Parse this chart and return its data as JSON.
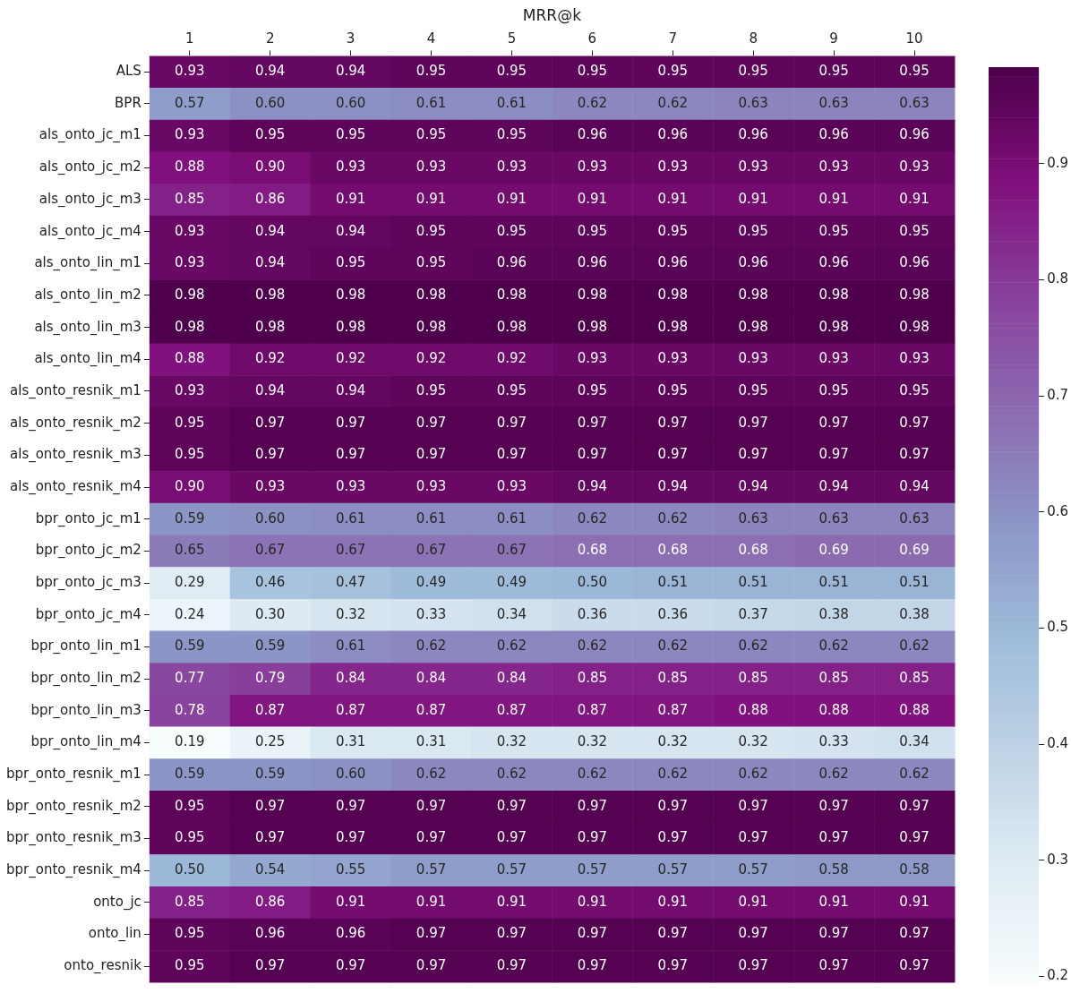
{
  "chart_data": {
    "type": "heatmap",
    "xlabel": "MRR@k",
    "categories": [
      "1",
      "2",
      "3",
      "4",
      "5",
      "6",
      "7",
      "8",
      "9",
      "10"
    ],
    "y_categories": [
      "ALS",
      "BPR",
      "als_onto_jc_m1",
      "als_onto_jc_m2",
      "als_onto_jc_m3",
      "als_onto_jc_m4",
      "als_onto_lin_m1",
      "als_onto_lin_m2",
      "als_onto_lin_m3",
      "als_onto_lin_m4",
      "als_onto_resnik_m1",
      "als_onto_resnik_m2",
      "als_onto_resnik_m3",
      "als_onto_resnik_m4",
      "bpr_onto_jc_m1",
      "bpr_onto_jc_m2",
      "bpr_onto_jc_m3",
      "bpr_onto_jc_m4",
      "bpr_onto_lin_m1",
      "bpr_onto_lin_m2",
      "bpr_onto_lin_m3",
      "bpr_onto_lin_m4",
      "bpr_onto_resnik_m1",
      "bpr_onto_resnik_m2",
      "bpr_onto_resnik_m3",
      "bpr_onto_resnik_m4",
      "onto_jc",
      "onto_lin",
      "onto_resnik"
    ],
    "cells": [
      [
        0.93,
        0.94,
        0.94,
        0.95,
        0.95,
        0.95,
        0.95,
        0.95,
        0.95,
        0.95
      ],
      [
        0.57,
        0.6,
        0.6,
        0.61,
        0.61,
        0.62,
        0.62,
        0.63,
        0.63,
        0.63
      ],
      [
        0.93,
        0.95,
        0.95,
        0.95,
        0.95,
        0.96,
        0.96,
        0.96,
        0.96,
        0.96
      ],
      [
        0.88,
        0.9,
        0.93,
        0.93,
        0.93,
        0.93,
        0.93,
        0.93,
        0.93,
        0.93
      ],
      [
        0.85,
        0.86,
        0.91,
        0.91,
        0.91,
        0.91,
        0.91,
        0.91,
        0.91,
        0.91
      ],
      [
        0.93,
        0.94,
        0.94,
        0.95,
        0.95,
        0.95,
        0.95,
        0.95,
        0.95,
        0.95
      ],
      [
        0.93,
        0.94,
        0.95,
        0.95,
        0.96,
        0.96,
        0.96,
        0.96,
        0.96,
        0.96
      ],
      [
        0.98,
        0.98,
        0.98,
        0.98,
        0.98,
        0.98,
        0.98,
        0.98,
        0.98,
        0.98
      ],
      [
        0.98,
        0.98,
        0.98,
        0.98,
        0.98,
        0.98,
        0.98,
        0.98,
        0.98,
        0.98
      ],
      [
        0.88,
        0.92,
        0.92,
        0.92,
        0.92,
        0.93,
        0.93,
        0.93,
        0.93,
        0.93
      ],
      [
        0.93,
        0.94,
        0.94,
        0.95,
        0.95,
        0.95,
        0.95,
        0.95,
        0.95,
        0.95
      ],
      [
        0.95,
        0.97,
        0.97,
        0.97,
        0.97,
        0.97,
        0.97,
        0.97,
        0.97,
        0.97
      ],
      [
        0.95,
        0.97,
        0.97,
        0.97,
        0.97,
        0.97,
        0.97,
        0.97,
        0.97,
        0.97
      ],
      [
        0.9,
        0.93,
        0.93,
        0.93,
        0.93,
        0.94,
        0.94,
        0.94,
        0.94,
        0.94
      ],
      [
        0.59,
        0.6,
        0.61,
        0.61,
        0.61,
        0.62,
        0.62,
        0.63,
        0.63,
        0.63
      ],
      [
        0.65,
        0.67,
        0.67,
        0.67,
        0.67,
        0.68,
        0.68,
        0.68,
        0.69,
        0.69
      ],
      [
        0.29,
        0.46,
        0.47,
        0.49,
        0.49,
        0.5,
        0.51,
        0.51,
        0.51,
        0.51
      ],
      [
        0.24,
        0.3,
        0.32,
        0.33,
        0.34,
        0.36,
        0.36,
        0.37,
        0.38,
        0.38
      ],
      [
        0.59,
        0.59,
        0.61,
        0.62,
        0.62,
        0.62,
        0.62,
        0.62,
        0.62,
        0.62
      ],
      [
        0.77,
        0.79,
        0.84,
        0.84,
        0.84,
        0.85,
        0.85,
        0.85,
        0.85,
        0.85
      ],
      [
        0.78,
        0.87,
        0.87,
        0.87,
        0.87,
        0.87,
        0.87,
        0.88,
        0.88,
        0.88
      ],
      [
        0.19,
        0.25,
        0.31,
        0.31,
        0.32,
        0.32,
        0.32,
        0.32,
        0.33,
        0.34
      ],
      [
        0.59,
        0.59,
        0.6,
        0.62,
        0.62,
        0.62,
        0.62,
        0.62,
        0.62,
        0.62
      ],
      [
        0.95,
        0.97,
        0.97,
        0.97,
        0.97,
        0.97,
        0.97,
        0.97,
        0.97,
        0.97
      ],
      [
        0.95,
        0.97,
        0.97,
        0.97,
        0.97,
        0.97,
        0.97,
        0.97,
        0.97,
        0.97
      ],
      [
        0.5,
        0.54,
        0.55,
        0.57,
        0.57,
        0.57,
        0.57,
        0.57,
        0.58,
        0.58
      ],
      [
        0.85,
        0.86,
        0.91,
        0.91,
        0.91,
        0.91,
        0.91,
        0.91,
        0.91,
        0.91
      ],
      [
        0.95,
        0.96,
        0.96,
        0.97,
        0.97,
        0.97,
        0.97,
        0.97,
        0.97,
        0.97
      ],
      [
        0.95,
        0.97,
        0.97,
        0.97,
        0.97,
        0.97,
        0.97,
        0.97,
        0.97,
        0.97
      ]
    ],
    "cell_labels": [
      [
        "0.93",
        "0.94",
        "0.94",
        "0.95",
        "0.95",
        "0.95",
        "0.95",
        "0.95",
        "0.95",
        "0.95"
      ],
      [
        "0.57",
        "0.60",
        "0.60",
        "0.61",
        "0.61",
        "0.62",
        "0.62",
        "0.63",
        "0.63",
        "0.63"
      ],
      [
        "0.93",
        "0.95",
        "0.95",
        "0.95",
        "0.95",
        "0.96",
        "0.96",
        "0.96",
        "0.96",
        "0.96"
      ],
      [
        "0.88",
        "0.90",
        "0.93",
        "0.93",
        "0.93",
        "0.93",
        "0.93",
        "0.93",
        "0.93",
        "0.93"
      ],
      [
        "0.85",
        "0.86",
        "0.91",
        "0.91",
        "0.91",
        "0.91",
        "0.91",
        "0.91",
        "0.91",
        "0.91"
      ],
      [
        "0.93",
        "0.94",
        "0.94",
        "0.95",
        "0.95",
        "0.95",
        "0.95",
        "0.95",
        "0.95",
        "0.95"
      ],
      [
        "0.93",
        "0.94",
        "0.95",
        "0.95",
        "0.96",
        "0.96",
        "0.96",
        "0.96",
        "0.96",
        "0.96"
      ],
      [
        "0.98",
        "0.98",
        "0.98",
        "0.98",
        "0.98",
        "0.98",
        "0.98",
        "0.98",
        "0.98",
        "0.98"
      ],
      [
        "0.98",
        "0.98",
        "0.98",
        "0.98",
        "0.98",
        "0.98",
        "0.98",
        "0.98",
        "0.98",
        "0.98"
      ],
      [
        "0.88",
        "0.92",
        "0.92",
        "0.92",
        "0.92",
        "0.93",
        "0.93",
        "0.93",
        "0.93",
        "0.93"
      ],
      [
        "0.93",
        "0.94",
        "0.94",
        "0.95",
        "0.95",
        "0.95",
        "0.95",
        "0.95",
        "0.95",
        "0.95"
      ],
      [
        "0.95",
        "0.97",
        "0.97",
        "0.97",
        "0.97",
        "0.97",
        "0.97",
        "0.97",
        "0.97",
        "0.97"
      ],
      [
        "0.95",
        "0.97",
        "0.97",
        "0.97",
        "0.97",
        "0.97",
        "0.97",
        "0.97",
        "0.97",
        "0.97"
      ],
      [
        "0.90",
        "0.93",
        "0.93",
        "0.93",
        "0.93",
        "0.94",
        "0.94",
        "0.94",
        "0.94",
        "0.94"
      ],
      [
        "0.59",
        "0.60",
        "0.61",
        "0.61",
        "0.61",
        "0.62",
        "0.62",
        "0.63",
        "0.63",
        "0.63"
      ],
      [
        "0.65",
        "0.67",
        "0.67",
        "0.67",
        "0.67",
        "0.68",
        "0.68",
        "0.68",
        "0.69",
        "0.69"
      ],
      [
        "0.29",
        "0.46",
        "0.47",
        "0.49",
        "0.49",
        "0.50",
        "0.51",
        "0.51",
        "0.51",
        "0.51"
      ],
      [
        "0.24",
        "0.30",
        "0.32",
        "0.33",
        "0.34",
        "0.36",
        "0.36",
        "0.37",
        "0.38",
        "0.38"
      ],
      [
        "0.59",
        "0.59",
        "0.61",
        "0.62",
        "0.62",
        "0.62",
        "0.62",
        "0.62",
        "0.62",
        "0.62"
      ],
      [
        "0.77",
        "0.79",
        "0.84",
        "0.84",
        "0.84",
        "0.85",
        "0.85",
        "0.85",
        "0.85",
        "0.85"
      ],
      [
        "0.78",
        "0.87",
        "0.87",
        "0.87",
        "0.87",
        "0.87",
        "0.87",
        "0.88",
        "0.88",
        "0.88"
      ],
      [
        "0.19",
        "0.25",
        "0.31",
        "0.31",
        "0.32",
        "0.32",
        "0.32",
        "0.32",
        "0.33",
        "0.34"
      ],
      [
        "0.59",
        "0.59",
        "0.60",
        "0.62",
        "0.62",
        "0.62",
        "0.62",
        "0.62",
        "0.62",
        "0.62"
      ],
      [
        "0.95",
        "0.97",
        "0.97",
        "0.97",
        "0.97",
        "0.97",
        "0.97",
        "0.97",
        "0.97",
        "0.97"
      ],
      [
        "0.95",
        "0.97",
        "0.97",
        "0.97",
        "0.97",
        "0.97",
        "0.97",
        "0.97",
        "0.97",
        "0.97"
      ],
      [
        "0.50",
        "0.54",
        "0.55",
        "0.57",
        "0.57",
        "0.57",
        "0.57",
        "0.57",
        "0.58",
        "0.58"
      ],
      [
        "0.85",
        "0.86",
        "0.91",
        "0.91",
        "0.91",
        "0.91",
        "0.91",
        "0.91",
        "0.91",
        "0.91"
      ],
      [
        "0.95",
        "0.96",
        "0.96",
        "0.97",
        "0.97",
        "0.97",
        "0.97",
        "0.97",
        "0.97",
        "0.97"
      ],
      [
        "0.95",
        "0.97",
        "0.97",
        "0.97",
        "0.97",
        "0.97",
        "0.97",
        "0.97",
        "0.97",
        "0.97"
      ]
    ],
    "clim": [
      0.195,
      0.983
    ],
    "cticks": [
      0.2,
      0.3,
      0.4,
      0.5,
      0.6,
      0.7,
      0.8,
      0.9
    ]
  }
}
